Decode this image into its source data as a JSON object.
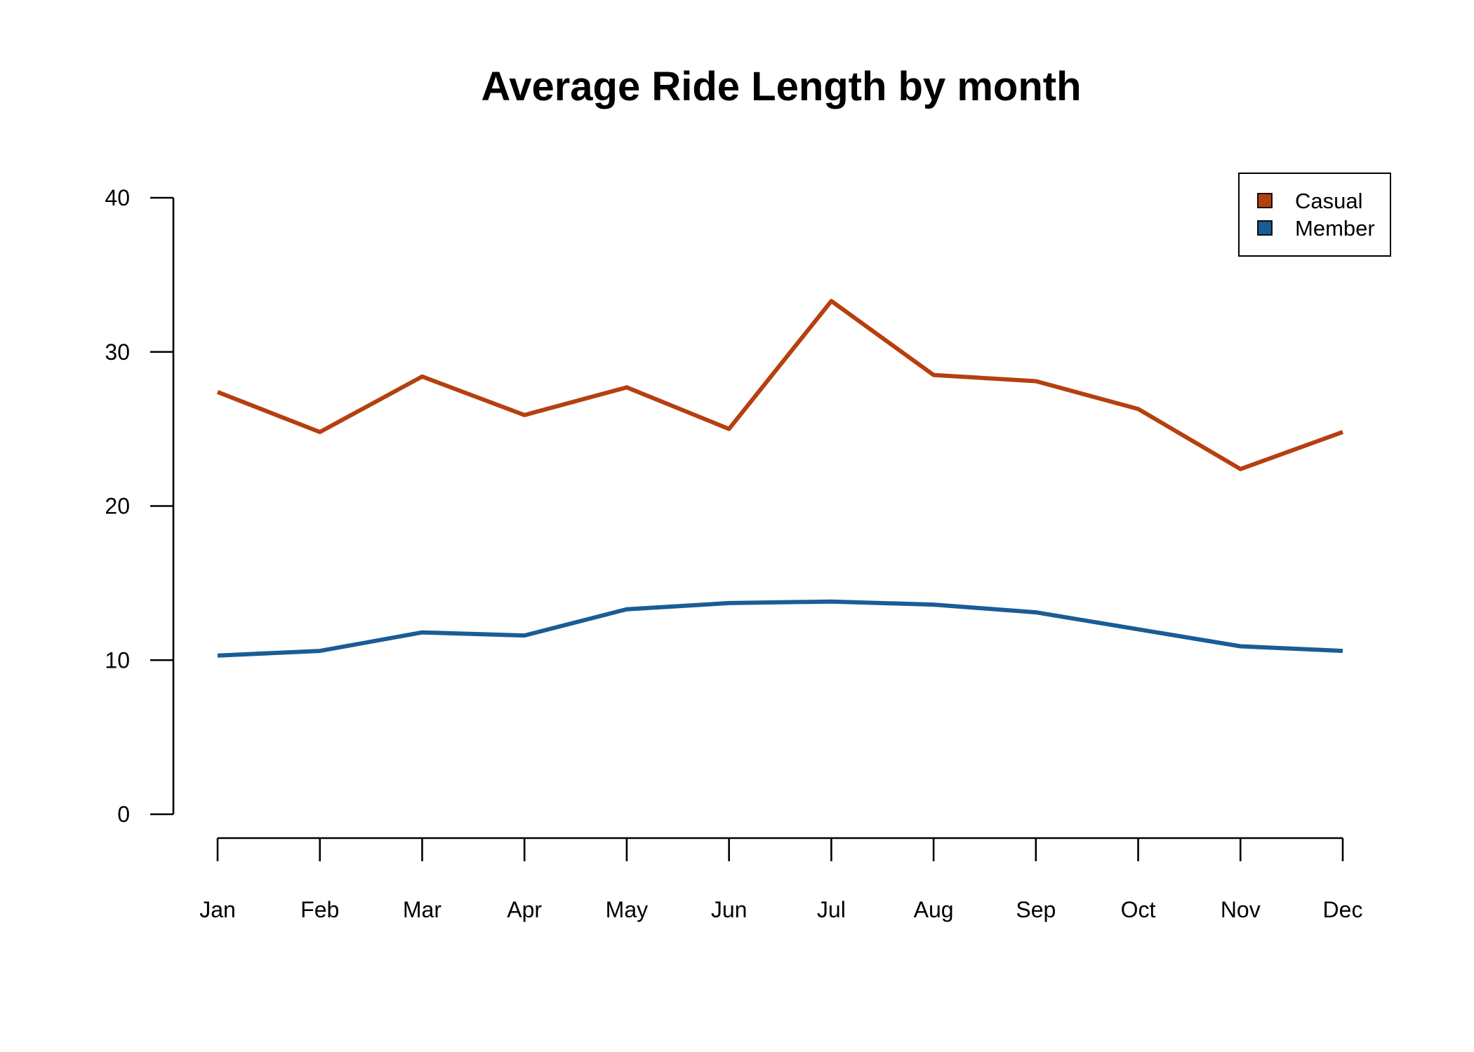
{
  "chart_data": {
    "type": "line",
    "title": "Average Ride Length by month",
    "xlabel": "",
    "ylabel": "",
    "categories": [
      "Jan",
      "Feb",
      "Mar",
      "Apr",
      "May",
      "Jun",
      "Jul",
      "Aug",
      "Sep",
      "Oct",
      "Nov",
      "Dec"
    ],
    "ylim": [
      0,
      40
    ],
    "yticks": [
      0,
      10,
      20,
      30,
      40
    ],
    "grid": false,
    "legend_position": "top-right",
    "series": [
      {
        "name": "Casual",
        "color": "#B5400F",
        "values": [
          27.4,
          24.8,
          28.4,
          25.9,
          27.7,
          25.0,
          33.3,
          28.5,
          28.1,
          26.3,
          22.4,
          24.8
        ]
      },
      {
        "name": "Member",
        "color": "#1A5C96",
        "values": [
          10.3,
          10.6,
          11.8,
          11.6,
          13.3,
          13.7,
          13.8,
          13.6,
          13.1,
          12.0,
          10.9,
          10.6
        ]
      }
    ]
  }
}
